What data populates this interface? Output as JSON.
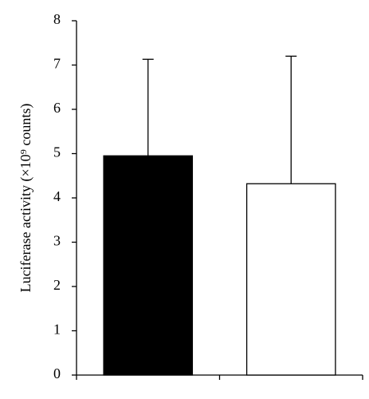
{
  "chart_data": {
    "type": "bar",
    "y_label": "Luciferase activity (×10⁹ counts)",
    "categories": [
      null,
      null
    ],
    "values": [
      4.95,
      4.32
    ],
    "errors": [
      2.18,
      2.88
    ],
    "colors": [
      "#000000",
      "#ffffff"
    ],
    "ylim": [
      0,
      8
    ],
    "yticks": [
      0,
      1,
      2,
      3,
      4,
      5,
      6,
      7,
      8
    ],
    "grid": false
  }
}
